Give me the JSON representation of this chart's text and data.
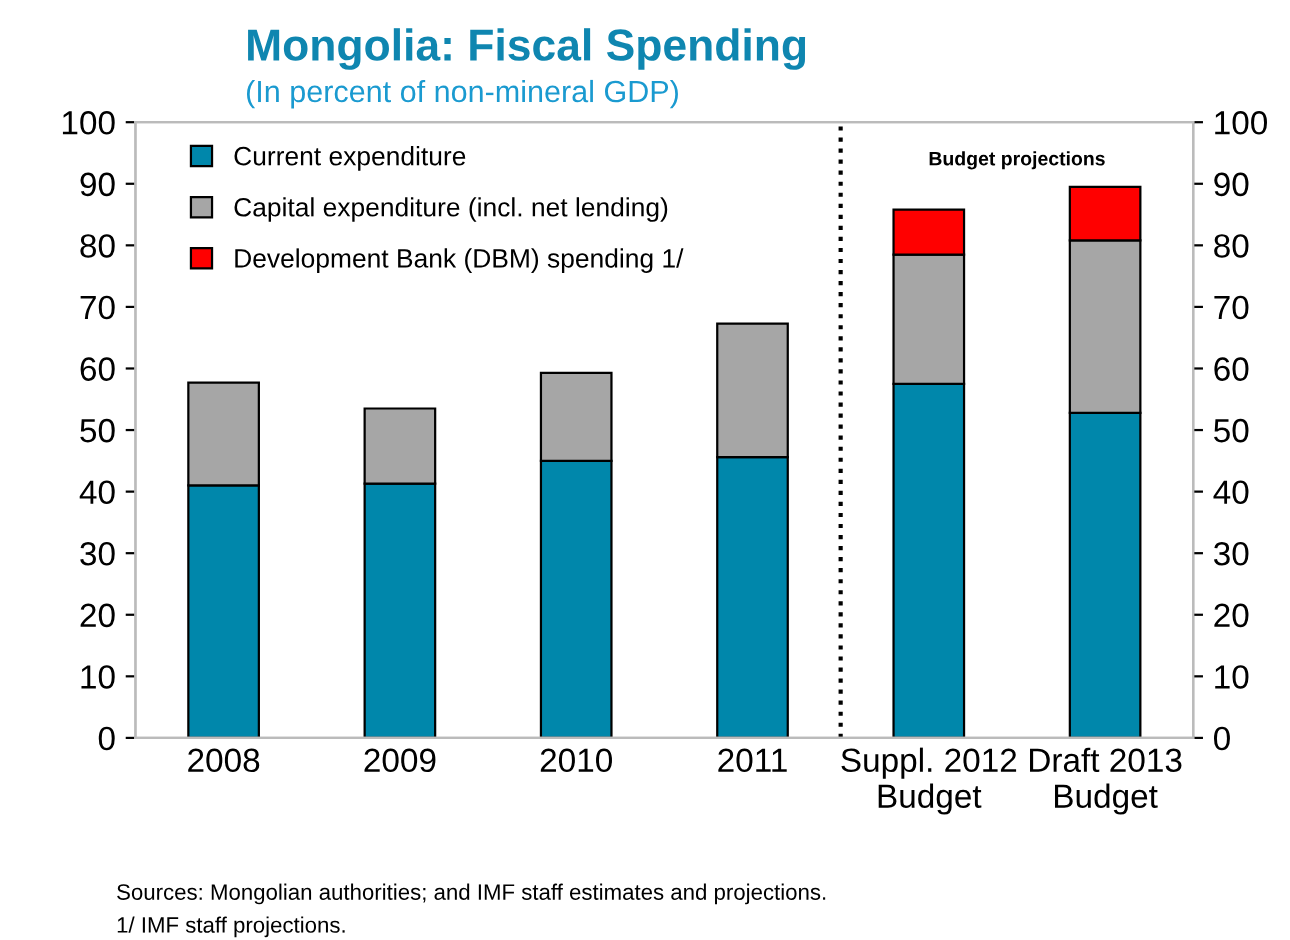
{
  "chart_data": {
    "type": "bar",
    "stacked": true,
    "title": "Mongolia: Fiscal Spending",
    "subtitle": "(In percent of non-mineral GDP)",
    "categories": [
      "2008",
      "2009",
      "2010",
      "2011",
      "Suppl. 2012\nBudget",
      "Draft 2013\nBudget"
    ],
    "series": [
      {
        "name": "Current expenditure",
        "color": "#0087ab",
        "values": [
          41,
          41.3,
          45,
          45.6,
          57.5,
          52.8
        ]
      },
      {
        "name": "Capital expenditure (incl. net lending)",
        "color": "#a6a6a6",
        "values": [
          16.7,
          12.2,
          14.3,
          21.7,
          21,
          28
        ]
      },
      {
        "name": "Development Bank (DBM) spending 1/",
        "color": "#ff0000",
        "values": [
          null,
          null,
          null,
          null,
          7.3,
          8.7
        ]
      }
    ],
    "ylim": [
      0,
      100
    ],
    "yticks": [
      0,
      10,
      20,
      30,
      40,
      50,
      60,
      70,
      80,
      90,
      100
    ],
    "y2lim": [
      0,
      100
    ],
    "y2ticks": [
      0,
      10,
      20,
      30,
      40,
      50,
      60,
      70,
      80,
      90,
      100
    ],
    "grid": false,
    "legend": "top left",
    "annotations": [
      "Budget projections",
      "Sources: Mongolian authorities; and IMF staff estimates and projections.",
      "1/ IMF staff projections."
    ]
  }
}
